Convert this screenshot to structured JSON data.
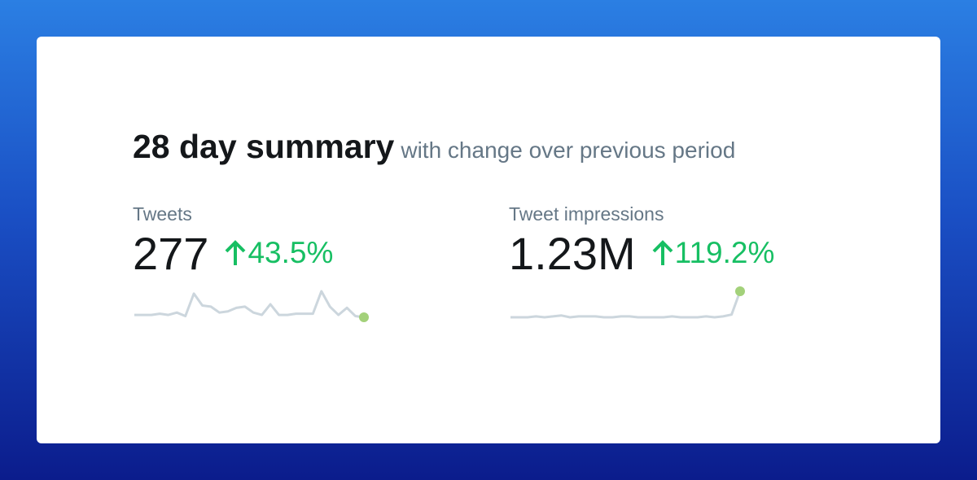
{
  "header": {
    "title": "28 day summary",
    "subtitle": "with change over previous period"
  },
  "metrics": [
    {
      "label": "Tweets",
      "value": "277",
      "change": "43.5%",
      "sparkline": [
        3,
        3,
        3,
        4,
        3,
        5,
        2,
        21,
        11,
        10,
        5,
        6,
        9,
        10,
        5,
        3,
        12,
        3,
        3,
        4,
        4,
        4,
        23,
        10,
        3,
        9,
        2,
        1
      ]
    },
    {
      "label": "Tweet impressions",
      "value": "1.23M",
      "change": "119.2%",
      "sparkline": [
        3,
        3,
        3,
        4,
        3,
        4,
        5,
        3,
        4,
        4,
        4,
        3,
        3,
        4,
        4,
        3,
        3,
        3,
        3,
        4,
        3,
        3,
        3,
        4,
        3,
        4,
        6,
        32
      ]
    }
  ]
}
